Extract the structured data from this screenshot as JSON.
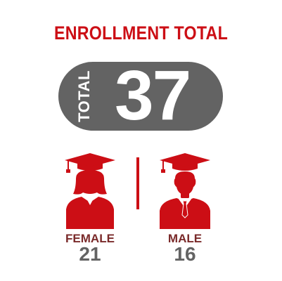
{
  "title": "ENROLLMENT TOTAL",
  "total": {
    "label": "TOTAL",
    "value": "37"
  },
  "groups": [
    {
      "label": "FEMALE",
      "count": "21",
      "icon": "female-graduate-icon"
    },
    {
      "label": "MALE",
      "count": "16",
      "icon": "male-graduate-icon"
    }
  ],
  "colors": {
    "accent": "#cc0e15",
    "pill": "#636363",
    "count": "#636363",
    "label": "#7a2a2a"
  }
}
